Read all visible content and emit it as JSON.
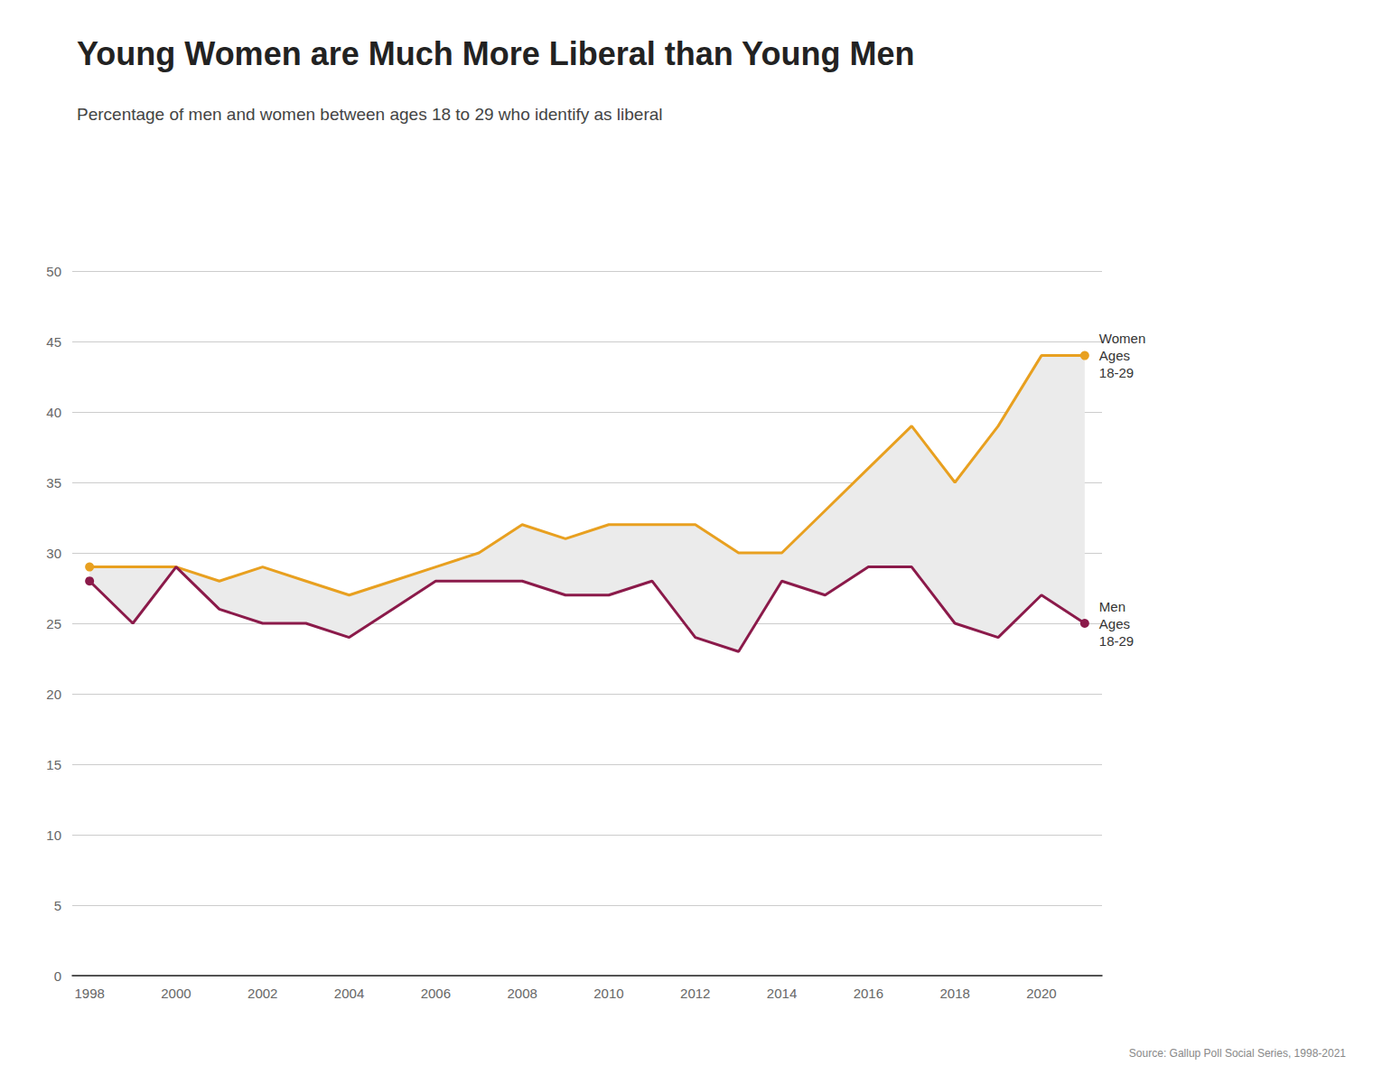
{
  "chart_data": {
    "type": "line",
    "title": "Young Women are Much More Liberal than Young Men",
    "subtitle": "Percentage of men and women between ages 18 to 29 who identify as liberal",
    "annotations": [
      "Source: Gallup Poll Social Series, 1998-2021"
    ],
    "x": [
      1998,
      1999,
      2000,
      2001,
      2002,
      2003,
      2004,
      2005,
      2006,
      2007,
      2008,
      2009,
      2010,
      2011,
      2012,
      2013,
      2014,
      2015,
      2016,
      2017,
      2018,
      2019,
      2020,
      2021
    ],
    "series": [
      {
        "name": "Women\nAges\n18-29",
        "color": "#E8A020",
        "marker": "circle",
        "values": [
          29,
          29,
          29,
          28,
          29,
          28,
          27,
          28,
          29,
          30,
          32,
          31,
          32,
          32,
          32,
          30,
          30,
          33,
          36,
          39,
          35,
          39,
          44,
          44
        ]
      },
      {
        "name": "Men\nAges\n18-29",
        "color": "#8B1A4A",
        "marker": "circle",
        "values": [
          28,
          25,
          29,
          26,
          25,
          25,
          24,
          26,
          28,
          28,
          28,
          27,
          27,
          28,
          24,
          23,
          28,
          27,
          29,
          29,
          25,
          24,
          27,
          25
        ]
      }
    ],
    "fill_color": "#EBEBEB",
    "xlim": [
      1997.6,
      2021.4
    ],
    "xticks": [
      1998,
      2000,
      2002,
      2004,
      2006,
      2008,
      2010,
      2012,
      2014,
      2016,
      2018,
      2020
    ],
    "ylim": [
      0,
      50
    ],
    "yticks": [
      0,
      5,
      10,
      15,
      20,
      25,
      30,
      35,
      40,
      45,
      50
    ],
    "grid": "y"
  }
}
